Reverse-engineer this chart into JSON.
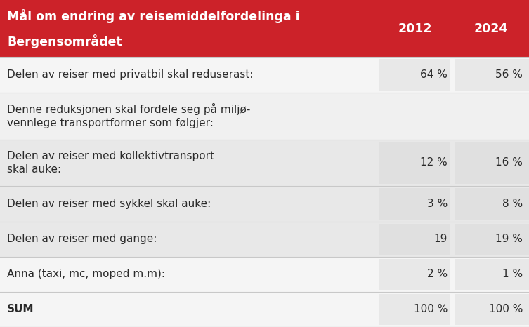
{
  "header_bg": "#cc2229",
  "header_text_color": "#ffffff",
  "header_title_line1": "Mål om endring av reisemiddelfordelinga i",
  "header_title_line2": "Bergensområdet",
  "col_2012": "2012",
  "col_2024": "2024",
  "rows": [
    {
      "label": "Delen av reiser med privatbil skal reduserast:",
      "val_2012": "64 %",
      "val_2024": "56 %",
      "row_bg": "#f5f5f5",
      "val_bg": "#e8e8e8",
      "tall": false
    },
    {
      "label": "Denne reduksjonen skal fordele seg på miljø-\nvennlege transportformer som følgjer:",
      "val_2012": "",
      "val_2024": "",
      "row_bg": "#f0f0f0",
      "val_bg": "",
      "tall": true
    },
    {
      "label": "Delen av reiser med kollektivtransport\nskal auke:",
      "val_2012": "12 %",
      "val_2024": "16 %",
      "row_bg": "#e8e8e8",
      "val_bg": "#e0e0e0",
      "tall": true
    },
    {
      "label": "Delen av reiser med sykkel skal auke:",
      "val_2012": "3 %",
      "val_2024": "8 %",
      "row_bg": "#e8e8e8",
      "val_bg": "#e0e0e0",
      "tall": false
    },
    {
      "label": "Delen av reiser med gange:",
      "val_2012": "19",
      "val_2024": "19 %",
      "row_bg": "#e8e8e8",
      "val_bg": "#e0e0e0",
      "tall": false
    },
    {
      "label": "Anna (taxi, mc, moped m.m):",
      "val_2012": "2 %",
      "val_2024": "1 %",
      "row_bg": "#f5f5f5",
      "val_bg": "#e8e8e8",
      "tall": false
    },
    {
      "label": "SUM",
      "val_2012": "100 %",
      "val_2024": "100 %",
      "row_bg": "#f5f5f5",
      "val_bg": "#e8e8e8",
      "tall": false
    }
  ],
  "text_color": "#2a2a2a",
  "val_color": "#2a2a2a",
  "font_size_header": 12.5,
  "font_size_body": 11.0,
  "fig_width": 7.53,
  "fig_height": 4.66,
  "dpi": 100
}
